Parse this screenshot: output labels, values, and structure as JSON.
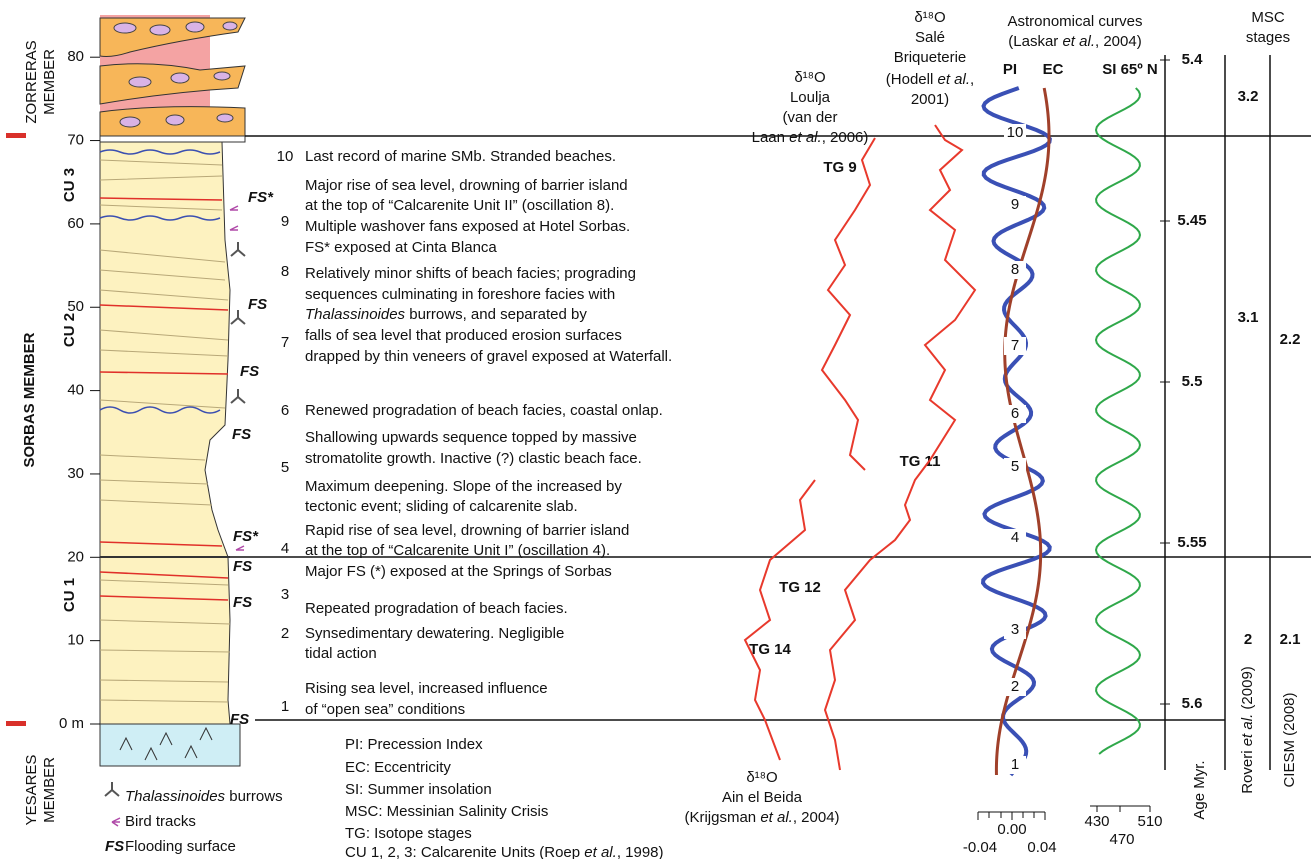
{
  "members": {
    "zorreras": [
      "ZORRERAS",
      "MEMBER"
    ],
    "sorbas": "SORBAS MEMBER",
    "yesares": [
      "YESARES",
      "MEMBER"
    ]
  },
  "units": [
    "CU 3",
    "CU 2",
    "CU 1"
  ],
  "height_ticks": [
    {
      "value": 0,
      "label": "0 m"
    },
    10,
    20,
    30,
    40,
    50,
    60,
    70,
    80
  ],
  "fs_labels": [
    "FS*",
    "FS",
    "FS",
    "FS",
    "FS*",
    "FS",
    "FS",
    "FS"
  ],
  "event_numbers": [
    "10",
    "9",
    "8",
    "7",
    "6",
    "5",
    "4",
    "3",
    "2",
    "1"
  ],
  "event_lines": [
    "Last record of marine SMb. Stranded beaches.",
    "Major rise of sea level, drowning of barrier island",
    "at the top of “Calcarenite Unit II” (oscillation 8).",
    "Multiple washover fans exposed at Hotel Sorbas.",
    "FS* exposed at Cinta Blanca",
    "Relatively minor shifts of beach facies; prograding",
    "sequences culminating in foreshore facies with",
    [
      "Thalassinoides",
      " burrows, and separated by"
    ],
    "falls of sea level that produced erosion surfaces",
    "drapped by thin veneers of gravel exposed at Waterfall.",
    "Renewed progradation of beach facies, coastal onlap.",
    "Shallowing upwards sequence topped by massive",
    "stromatolite growth. Inactive (?) clastic beach face.",
    "Maximum deepening. Slope of the increased by",
    "tectonic event; sliding of calcarenite slab.",
    "Rapid rise of sea level, drowning of barrier island",
    "at the top of “Calcarenite Unit I” (oscillation 4).",
    "Major FS (*) exposed at the Springs of Sorbas",
    "Repeated progradation of beach facies.",
    "Synsedimentary dewatering. Negligible",
    "tidal action",
    "Rising sea level, increased influence",
    "of “open sea” conditions"
  ],
  "isotopes": {
    "loulja": [
      "δ¹⁸O",
      "Loulja",
      "(van der",
      [
        "Laan ",
        "et al.",
        ", 2006)"
      ]
    ],
    "sale": [
      "δ¹⁸O",
      "Salé",
      "Briqueterie",
      [
        "(Hodell ",
        "et al.",
        ","
      ],
      "2001)"
    ],
    "ain_el_beida": [
      "δ¹⁸O",
      "Ain el Beida",
      [
        "(Krijgsman ",
        "et al.",
        ", 2004)"
      ]
    ]
  },
  "isotope_stages": [
    "TG 9",
    "TG 11",
    "TG 12",
    "TG 14"
  ],
  "astronomical": {
    "title": "Astronomical curves",
    "ref": [
      "(Laskar ",
      "et al.",
      ", 2004)"
    ],
    "curves": [
      "PI",
      "EC",
      "SI 65º N"
    ]
  },
  "cycle_numbers": [
    "10",
    "9",
    "8",
    "7",
    "6",
    "5",
    "4",
    "3",
    "2",
    "1"
  ],
  "age_axis": {
    "title": "Age Myr.",
    "ticks": [
      5.4,
      5.45,
      5.5,
      5.55,
      5.6
    ]
  },
  "msc": {
    "title": [
      "MSC",
      "stages"
    ],
    "roveri": [
      "3.2",
      "3.1",
      "2"
    ],
    "ciesm": [
      "2.2",
      "2.1"
    ],
    "roveri_ref": [
      "Roveri ",
      "et al.",
      " (2009)"
    ],
    "ciesm_ref": "CIESM (2008)"
  },
  "pi_axis": [
    "0.00",
    "-0.04",
    "0.04"
  ],
  "si_axis": [
    "430",
    "510",
    "470"
  ],
  "legend": {
    "burrows": [
      "Thalassinoides",
      " burrows"
    ],
    "birds": "Bird tracks",
    "fs": [
      "FS",
      "Flooding surface"
    ]
  },
  "abbreviations": [
    "PI: Precession Index",
    "EC: Eccentricity",
    "SI: Summer insolation",
    "MSC: Messinian Salinity Crisis",
    "TG: Isotope stages",
    [
      "CU 1, 2, 3: Calcarenite Units (Roep ",
      "et al.",
      ", 1998)"
    ]
  ]
}
